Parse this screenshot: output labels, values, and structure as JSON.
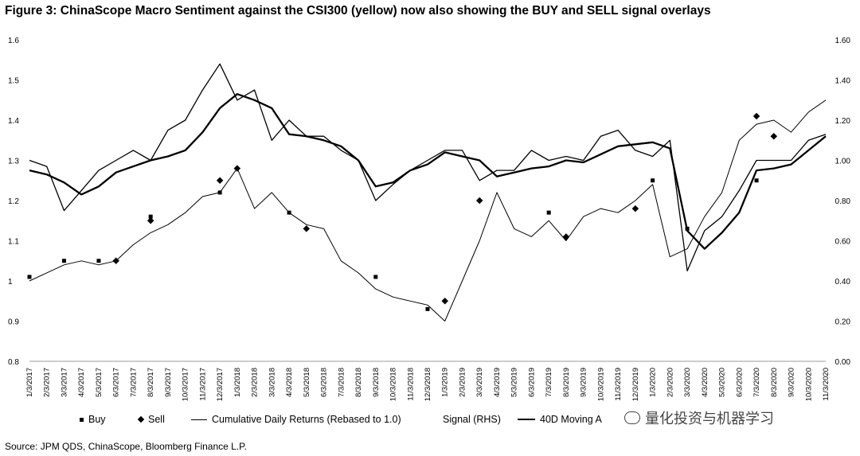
{
  "title": "Figure 3: ChinaScope Macro Sentiment against the CSI300 (yellow) now also showing the BUY and SELL signal overlays",
  "source": "Source: JPM QDS, ChinaScope, Bloomberg Finance L.P.",
  "legend": {
    "buy": "Buy",
    "sell": "Sell",
    "cumulative": "Cumulative Daily Returns (Rebased to 1.0)",
    "signal": "Signal (RHS)",
    "ma": "40D Moving A"
  },
  "watermark": "量化投资与机器学习",
  "chart_data": {
    "type": "line",
    "categories": [
      "1/3/2017",
      "2/3/2017",
      "3/3/2017",
      "4/3/2017",
      "5/3/2017",
      "6/3/2017",
      "7/3/2017",
      "8/3/2017",
      "9/3/2017",
      "10/3/2017",
      "11/3/2017",
      "12/3/2017",
      "1/3/2018",
      "2/3/2018",
      "3/3/2018",
      "4/3/2018",
      "5/3/2018",
      "6/3/2018",
      "7/3/2018",
      "8/3/2018",
      "9/3/2018",
      "10/3/2018",
      "11/3/2018",
      "12/3/2018",
      "1/3/2019",
      "2/3/2019",
      "3/3/2019",
      "4/3/2019",
      "5/3/2019",
      "6/3/2019",
      "7/3/2019",
      "8/3/2019",
      "9/3/2019",
      "10/3/2019",
      "11/3/2019",
      "12/3/2019",
      "1/3/2020",
      "2/3/2020",
      "3/3/2020",
      "4/3/2020",
      "5/3/2020",
      "6/3/2020",
      "7/3/2020",
      "8/3/2020",
      "9/3/2020",
      "10/3/2020",
      "11/3/2020"
    ],
    "left_axis": {
      "ticks": [
        "0.8",
        "0.9",
        "1",
        "1.1",
        "1.2",
        "1.3",
        "1.4",
        "1.5",
        "1.6"
      ],
      "ylim": [
        0.8,
        1.6
      ]
    },
    "right_axis": {
      "ticks": [
        "0.00",
        "0.20",
        "0.40",
        "0.60",
        "0.80",
        "1.00",
        "1.20",
        "1.40",
        "1.60"
      ],
      "ylim": [
        0.0,
        1.6
      ]
    },
    "series": [
      {
        "name": "Cumulative Daily Returns (Rebased to 1.0)",
        "axis": "left",
        "style": "thin",
        "values": [
          1.0,
          1.02,
          1.04,
          1.05,
          1.04,
          1.05,
          1.09,
          1.12,
          1.14,
          1.17,
          1.21,
          1.22,
          1.28,
          1.18,
          1.22,
          1.17,
          1.14,
          1.13,
          1.05,
          1.02,
          0.98,
          0.96,
          0.95,
          0.94,
          0.9,
          1.0,
          1.1,
          1.22,
          1.13,
          1.11,
          1.15,
          1.1,
          1.16,
          1.18,
          1.17,
          1.2,
          1.24,
          1.06,
          1.08,
          1.16,
          1.22,
          1.35,
          1.39,
          1.4,
          1.37,
          1.42,
          1.45
        ]
      },
      {
        "name": "Signal (RHS)",
        "axis": "right",
        "style": "medium",
        "values": [
          1.0,
          0.97,
          0.75,
          0.85,
          0.95,
          1.0,
          1.05,
          1.0,
          1.15,
          1.2,
          1.35,
          1.48,
          1.3,
          1.35,
          1.1,
          1.2,
          1.12,
          1.12,
          1.05,
          1.0,
          0.8,
          0.88,
          0.95,
          1.0,
          1.05,
          1.05,
          0.9,
          0.95,
          0.95,
          1.05,
          1.0,
          1.02,
          1.0,
          1.12,
          1.15,
          1.05,
          1.02,
          1.1,
          0.45,
          0.65,
          0.72,
          0.85,
          1.0,
          1.0,
          1.0,
          1.1,
          1.13
        ]
      },
      {
        "name": "40D Moving A",
        "axis": "right",
        "style": "thick",
        "values": [
          0.95,
          0.93,
          0.89,
          0.83,
          0.87,
          0.94,
          0.97,
          1.0,
          1.02,
          1.05,
          1.14,
          1.26,
          1.33,
          1.3,
          1.26,
          1.13,
          1.12,
          1.1,
          1.07,
          1.0,
          0.87,
          0.89,
          0.95,
          0.98,
          1.04,
          1.02,
          1.0,
          0.92,
          0.94,
          0.96,
          0.97,
          1.0,
          0.99,
          1.03,
          1.07,
          1.08,
          1.09,
          1.06,
          0.65,
          0.56,
          0.64,
          0.74,
          0.95,
          0.96,
          0.98,
          1.05,
          1.12
        ]
      }
    ],
    "signals": {
      "buy": [
        [
          "1/3/2017",
          1.01
        ],
        [
          "3/3/2017",
          1.05
        ],
        [
          "5/3/2017",
          1.05
        ],
        [
          "8/3/2017",
          1.16
        ],
        [
          "12/3/2017",
          1.22
        ],
        [
          "4/3/2018",
          1.17
        ],
        [
          "9/3/2018",
          1.01
        ],
        [
          "12/3/2018",
          0.93
        ],
        [
          "7/3/2019",
          1.17
        ],
        [
          "1/3/2020",
          1.25
        ],
        [
          "3/3/2020",
          1.13
        ],
        [
          "7/3/2020",
          1.25
        ]
      ],
      "sell": [
        [
          "6/3/2017",
          1.05
        ],
        [
          "8/3/2017",
          1.15
        ],
        [
          "12/3/2017",
          1.25
        ],
        [
          "1/3/2018",
          1.28
        ],
        [
          "5/3/2018",
          1.13
        ],
        [
          "1/3/2019",
          0.95
        ],
        [
          "3/3/2019",
          1.2
        ],
        [
          "8/3/2019",
          1.11
        ],
        [
          "12/3/2019",
          1.18
        ],
        [
          "7/3/2020",
          1.41
        ],
        [
          "8/3/2020",
          1.36
        ]
      ]
    }
  }
}
